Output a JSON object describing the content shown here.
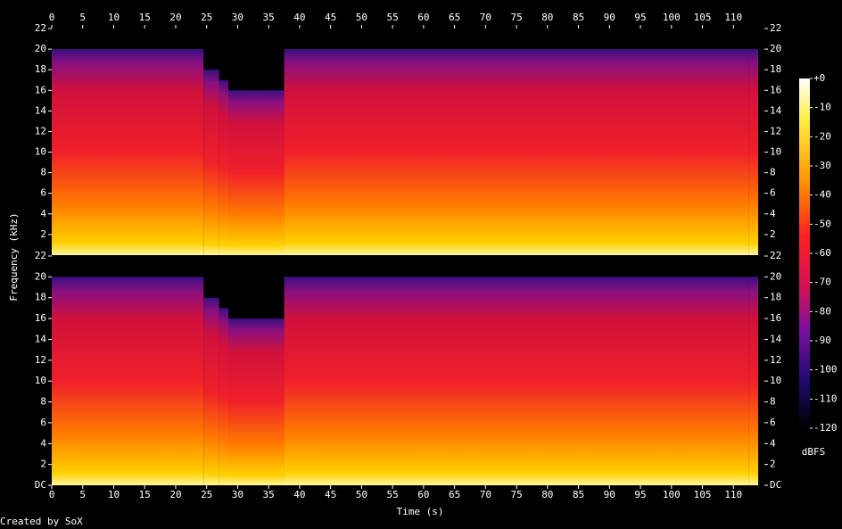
{
  "chart_data": {
    "type": "spectrogram",
    "xlabel": "Time (s)",
    "ylabel": "Frequency (kHz)",
    "xlim": [
      0,
      115
    ],
    "xticks": [
      0,
      5,
      10,
      15,
      20,
      25,
      30,
      35,
      40,
      45,
      50,
      55,
      60,
      65,
      70,
      75,
      80,
      85,
      90,
      95,
      100,
      105,
      110
    ],
    "panels": [
      {
        "ylim": [
          0,
          22
        ],
        "yticks": [
          2,
          4,
          6,
          8,
          10,
          12,
          14,
          16,
          18,
          20,
          22
        ]
      },
      {
        "ylim": [
          0,
          22
        ],
        "yticks": [
          {
            "value": 0,
            "label": "DC"
          },
          2,
          4,
          6,
          8,
          10,
          12,
          14,
          16,
          18,
          20,
          22
        ]
      }
    ],
    "segments": {
      "start": [
        0,
        24.5,
        27,
        28.5,
        37.5,
        112.5
      ],
      "end": [
        24.5,
        27,
        28.5,
        37.5,
        112.5,
        114
      ],
      "cutoff": [
        20,
        18,
        17,
        16,
        20,
        20
      ]
    },
    "colorbar": {
      "label": "dBFS",
      "lim": [
        -120,
        0
      ],
      "ticks": [
        {
          "value": 0,
          "label": "+0"
        },
        -10,
        -20,
        -30,
        -40,
        -50,
        -60,
        -70,
        -80,
        -90,
        -100,
        -110,
        -120
      ]
    },
    "footer": "Created by SoX"
  }
}
